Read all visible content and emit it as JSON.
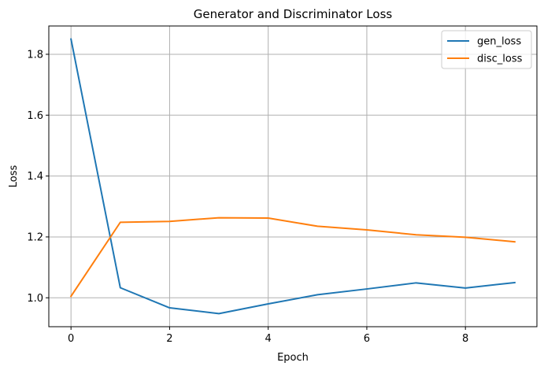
{
  "chart_data": {
    "type": "line",
    "title": "Generator and Discriminator Loss",
    "xlabel": "Epoch",
    "ylabel": "Loss",
    "x": [
      0,
      1,
      2,
      3,
      4,
      5,
      6,
      7,
      8,
      9
    ],
    "xlim": [
      -0.45,
      9.45
    ],
    "ylim": [
      0.905,
      1.893
    ],
    "xticks": [
      0,
      2,
      4,
      6,
      8
    ],
    "yticks": [
      1.0,
      1.2,
      1.4,
      1.6,
      1.8
    ],
    "xtick_labels": [
      "0",
      "2",
      "4",
      "6",
      "8"
    ],
    "ytick_labels": [
      "1.0",
      "1.2",
      "1.4",
      "1.6",
      "1.8"
    ],
    "grid": true,
    "legend_position": "top-right",
    "series": [
      {
        "name": "gen_loss",
        "color": "#1f77b4",
        "values": [
          1.85,
          1.033,
          0.967,
          0.948,
          0.98,
          1.01,
          1.029,
          1.049,
          1.032,
          1.05
        ]
      },
      {
        "name": "disc_loss",
        "color": "#ff7f0e",
        "values": [
          1.005,
          1.248,
          1.251,
          1.263,
          1.262,
          1.235,
          1.223,
          1.207,
          1.199,
          1.184
        ]
      }
    ]
  }
}
